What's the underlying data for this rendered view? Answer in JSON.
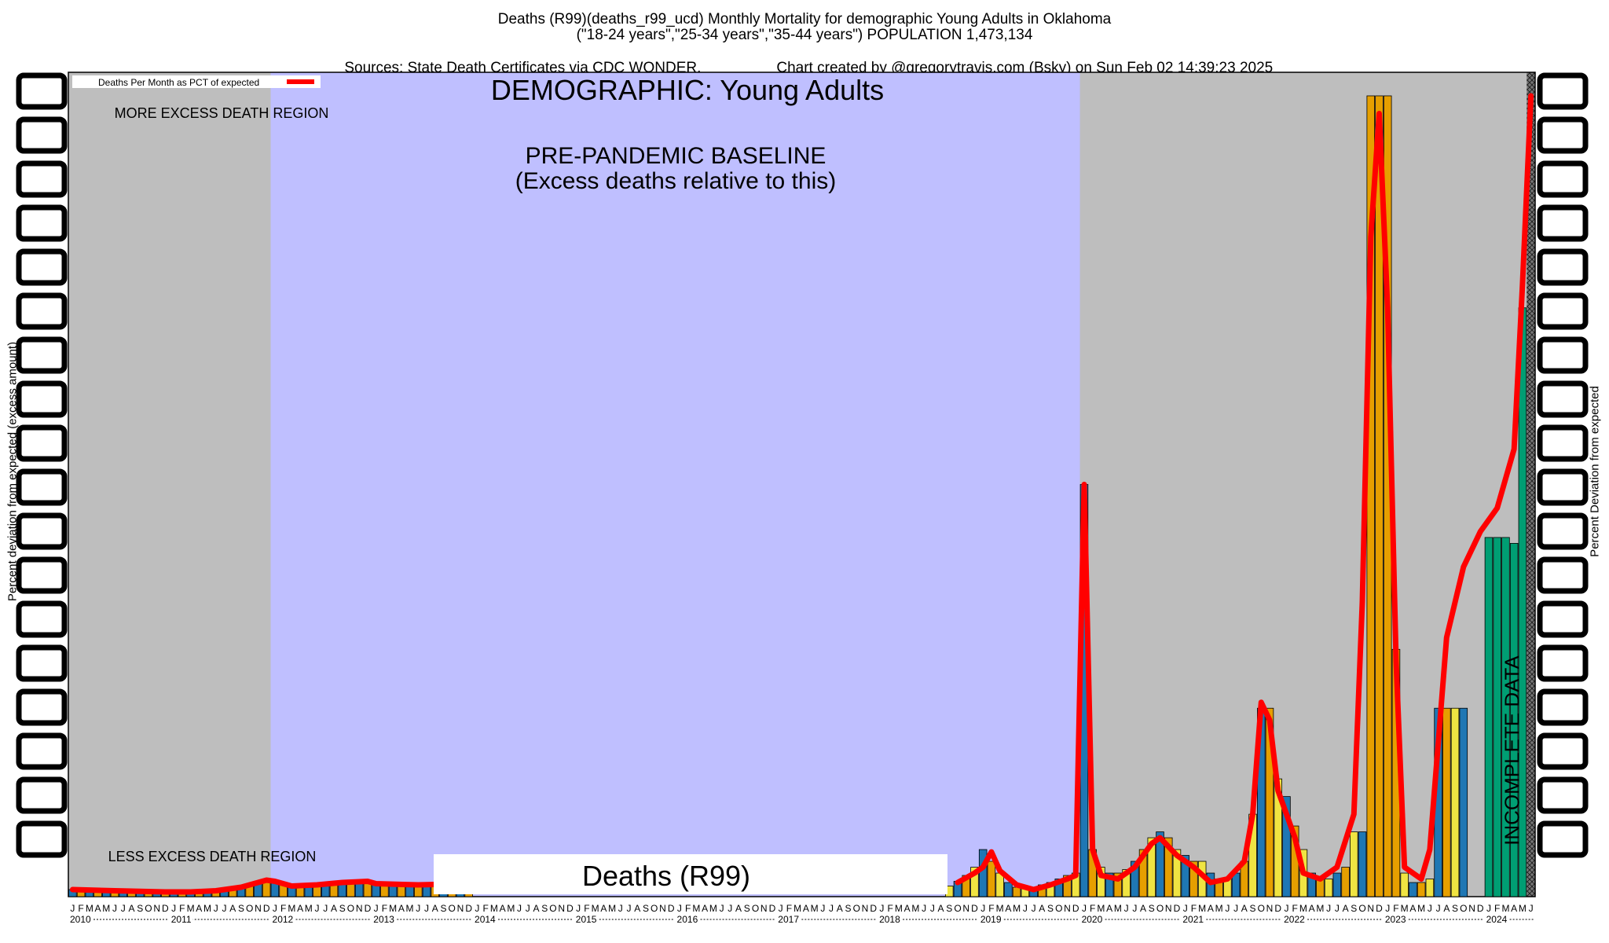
{
  "header": {
    "line1": "Deaths (R99)(deaths_r99_ucd) Monthly Mortality for demographic Young Adults in Oklahoma",
    "line2": "(\"18-24 years\",\"25-34 years\",\"35-44 years\") POPULATION 1,473,134",
    "line3_left": "Sources: State Death Certificates via CDC WONDER.",
    "line3_right": "Chart created by @gregorytravis.com (Bsky) on Sun Feb 02 14:39:23 2025"
  },
  "axes": {
    "ylabel_left": "Percent deviation from expected (excess amount)",
    "ylabel_right": "Percent Deviation from expected"
  },
  "colors": {
    "baseline_region": "#bfbfff",
    "outside_region": "#bebebe",
    "line": "#ff0000",
    "bar_blue": "#1f77b4",
    "bar_orange": "#e69f00",
    "bar_yellow": "#f0e442",
    "bar_green": "#009e73"
  },
  "chart_data": {
    "type": "bar",
    "title": "DEMOGRAPHIC: Young Adults",
    "legend": {
      "label": "Deaths Per Month as PCT of expected",
      "position": "top-left"
    },
    "annotations": {
      "baseline_line1": "PRE-PANDEMIC BASELINE",
      "baseline_line2": "(Excess deaths relative to this)",
      "more_region": "MORE EXCESS DEATH REGION",
      "less_region": "LESS EXCESS DEATH REGION",
      "incomplete": "INCOMPLETE DATA",
      "cause_label": "Deaths (R99)"
    },
    "x_axis": {
      "month_letters": [
        "J",
        "F",
        "M",
        "A",
        "M",
        "J",
        "J",
        "A",
        "S",
        "O",
        "N",
        "D"
      ],
      "years": [
        "2010",
        "2011",
        "2012",
        "2013",
        "2014",
        "2015",
        "2016",
        "2017",
        "2018",
        "2019",
        "2020",
        "2021",
        "2022",
        "2023",
        "2024"
      ],
      "start": "2010-01",
      "end": "2024-06"
    },
    "baseline_period": {
      "start": "2012-01",
      "end": "2019-12"
    },
    "incomplete_from": "2024-06",
    "grid": false,
    "series": [
      {
        "kind": "bars",
        "points": [
          [
            "2010-01",
            0.6
          ],
          [
            "2010-02",
            0.6
          ],
          [
            "2010-03",
            0.6
          ],
          [
            "2010-04",
            0.6
          ],
          [
            "2010-05",
            0.5
          ],
          [
            "2010-06",
            0.5
          ],
          [
            "2010-07",
            0.5
          ],
          [
            "2010-08",
            0.5
          ],
          [
            "2010-09",
            0.5
          ],
          [
            "2010-10",
            0.5
          ],
          [
            "2010-11",
            0.4
          ],
          [
            "2010-12",
            0.4
          ],
          [
            "2011-01",
            0.4
          ],
          [
            "2011-02",
            0.4
          ],
          [
            "2011-03",
            0.5
          ],
          [
            "2011-04",
            0.5
          ],
          [
            "2011-05",
            0.5
          ],
          [
            "2011-06",
            0.6
          ],
          [
            "2011-07",
            0.6
          ],
          [
            "2011-08",
            0.7
          ],
          [
            "2011-09",
            0.9
          ],
          [
            "2011-10",
            1.1
          ],
          [
            "2011-11",
            1.3
          ],
          [
            "2011-12",
            1.5
          ],
          [
            "2012-01",
            1.3
          ],
          [
            "2012-02",
            1.0
          ],
          [
            "2012-03",
            0.9
          ],
          [
            "2012-04",
            0.9
          ],
          [
            "2012-05",
            1.0
          ],
          [
            "2012-06",
            1.0
          ],
          [
            "2012-07",
            1.1
          ],
          [
            "2012-08",
            1.2
          ],
          [
            "2012-09",
            1.2
          ],
          [
            "2012-10",
            1.3
          ],
          [
            "2012-11",
            1.3
          ],
          [
            "2012-12",
            1.2
          ],
          [
            "2013-01",
            1.1
          ],
          [
            "2013-02",
            1.1
          ],
          [
            "2013-03",
            1.2
          ],
          [
            "2013-04",
            1.2
          ],
          [
            "2013-05",
            1.2
          ],
          [
            "2013-06",
            1.1
          ],
          [
            "2013-07",
            1.1
          ],
          [
            "2013-08",
            1.1
          ],
          [
            "2013-09",
            1.1
          ],
          [
            "2013-10",
            1.1
          ],
          [
            "2013-11",
            1.1
          ],
          [
            "2013-12",
            1.1
          ],
          [
            "2018-09",
            0.9
          ],
          [
            "2018-10",
            1.3
          ],
          [
            "2018-11",
            1.8
          ],
          [
            "2018-12",
            2.5
          ],
          [
            "2019-01",
            4.0
          ],
          [
            "2019-02",
            3.0
          ],
          [
            "2019-03",
            2.0
          ],
          [
            "2019-04",
            1.2
          ],
          [
            "2019-05",
            0.8
          ],
          [
            "2019-06",
            0.7
          ],
          [
            "2019-07",
            0.8
          ],
          [
            "2019-08",
            1.0
          ],
          [
            "2019-09",
            1.2
          ],
          [
            "2019-10",
            1.5
          ],
          [
            "2019-11",
            1.8
          ],
          [
            "2019-12",
            2.0
          ],
          [
            "2020-01",
            35
          ],
          [
            "2020-02",
            4
          ],
          [
            "2020-03",
            2.5
          ],
          [
            "2020-04",
            2
          ],
          [
            "2020-05",
            2
          ],
          [
            "2020-06",
            2.3
          ],
          [
            "2020-07",
            3
          ],
          [
            "2020-08",
            4
          ],
          [
            "2020-09",
            5
          ],
          [
            "2020-10",
            5.5
          ],
          [
            "2020-11",
            5
          ],
          [
            "2020-12",
            4
          ],
          [
            "2021-01",
            3.5
          ],
          [
            "2021-02",
            3
          ],
          [
            "2021-03",
            3
          ],
          [
            "2021-04",
            2
          ],
          [
            "2021-05",
            1.5
          ],
          [
            "2021-06",
            1.5
          ],
          [
            "2021-07",
            2
          ],
          [
            "2021-08",
            3
          ],
          [
            "2021-09",
            7
          ],
          [
            "2021-10",
            16
          ],
          [
            "2021-11",
            16
          ],
          [
            "2021-12",
            10
          ],
          [
            "2022-01",
            8.5
          ],
          [
            "2022-02",
            6
          ],
          [
            "2022-03",
            4
          ],
          [
            "2022-04",
            2
          ],
          [
            "2022-05",
            1.5
          ],
          [
            "2022-06",
            1.5
          ],
          [
            "2022-07",
            2
          ],
          [
            "2022-08",
            2.5
          ],
          [
            "2022-09",
            5.5
          ],
          [
            "2022-10",
            5.5
          ],
          [
            "2022-12",
            68
          ],
          [
            "2022-11",
            68
          ],
          [
            "2023-01",
            68
          ],
          [
            "2023-02",
            21
          ],
          [
            "2023-03",
            2
          ],
          [
            "2023-04",
            1.2
          ],
          [
            "2023-05",
            1.2
          ],
          [
            "2023-06",
            1.5
          ],
          [
            "2023-07",
            16
          ],
          [
            "2023-08",
            16
          ],
          [
            "2023-09",
            16
          ],
          [
            "2023-10",
            16
          ],
          [
            "2024-01",
            30.5
          ],
          [
            "2024-02",
            30.5
          ],
          [
            "2024-03",
            30.5
          ],
          [
            "2024-04",
            30
          ],
          [
            "2024-05",
            50
          ]
        ]
      },
      {
        "name": "Deaths Per Month as PCT of expected",
        "kind": "line",
        "points": [
          [
            "2010-01",
            0.6
          ],
          [
            "2010-06",
            0.5
          ],
          [
            "2010-12",
            0.4
          ],
          [
            "2011-03",
            0.4
          ],
          [
            "2011-06",
            0.5
          ],
          [
            "2011-09",
            0.8
          ],
          [
            "2011-12",
            1.4
          ],
          [
            "2012-01",
            1.3
          ],
          [
            "2012-03",
            0.9
          ],
          [
            "2012-06",
            1.0
          ],
          [
            "2012-09",
            1.2
          ],
          [
            "2012-12",
            1.3
          ],
          [
            "2013-01",
            1.1
          ],
          [
            "2013-06",
            1.0
          ],
          [
            "2013-12",
            1.1
          ],
          [
            "2018-10",
            1.2
          ],
          [
            "2018-12",
            2.0
          ],
          [
            "2019-01",
            2.5
          ],
          [
            "2019-02",
            3.8
          ],
          [
            "2019-03",
            2.2
          ],
          [
            "2019-05",
            1.0
          ],
          [
            "2019-07",
            0.6
          ],
          [
            "2019-09",
            1.0
          ],
          [
            "2019-11",
            1.5
          ],
          [
            "2019-12",
            1.8
          ],
          [
            "2020-01",
            35
          ],
          [
            "2020-02",
            4
          ],
          [
            "2020-03",
            1.8
          ],
          [
            "2020-05",
            1.5
          ],
          [
            "2020-07",
            2.5
          ],
          [
            "2020-09",
            4.5
          ],
          [
            "2020-10",
            5.0
          ],
          [
            "2020-12",
            3.5
          ],
          [
            "2021-02",
            2.5
          ],
          [
            "2021-04",
            1.2
          ],
          [
            "2021-06",
            1.5
          ],
          [
            "2021-08",
            3.0
          ],
          [
            "2021-09",
            7
          ],
          [
            "2021-10",
            16.5
          ],
          [
            "2021-11",
            15
          ],
          [
            "2021-12",
            9
          ],
          [
            "2022-01",
            7
          ],
          [
            "2022-02",
            5
          ],
          [
            "2022-03",
            2.0
          ],
          [
            "2022-05",
            1.5
          ],
          [
            "2022-07",
            2.5
          ],
          [
            "2022-09",
            7
          ],
          [
            "2022-10",
            25
          ],
          [
            "2022-11",
            56
          ],
          [
            "2022-12",
            66.5
          ],
          [
            "2023-01",
            50
          ],
          [
            "2023-02",
            20
          ],
          [
            "2023-03",
            2.5
          ],
          [
            "2023-05",
            1.5
          ],
          [
            "2023-06",
            4
          ],
          [
            "2023-07",
            13
          ],
          [
            "2023-08",
            22
          ],
          [
            "2023-10",
            28
          ],
          [
            "2023-12",
            31
          ],
          [
            "2024-02",
            33
          ],
          [
            "2024-04",
            38
          ],
          [
            "2024-05",
            52
          ],
          [
            "2024-06",
            68
          ]
        ]
      }
    ],
    "y_max": 70
  }
}
